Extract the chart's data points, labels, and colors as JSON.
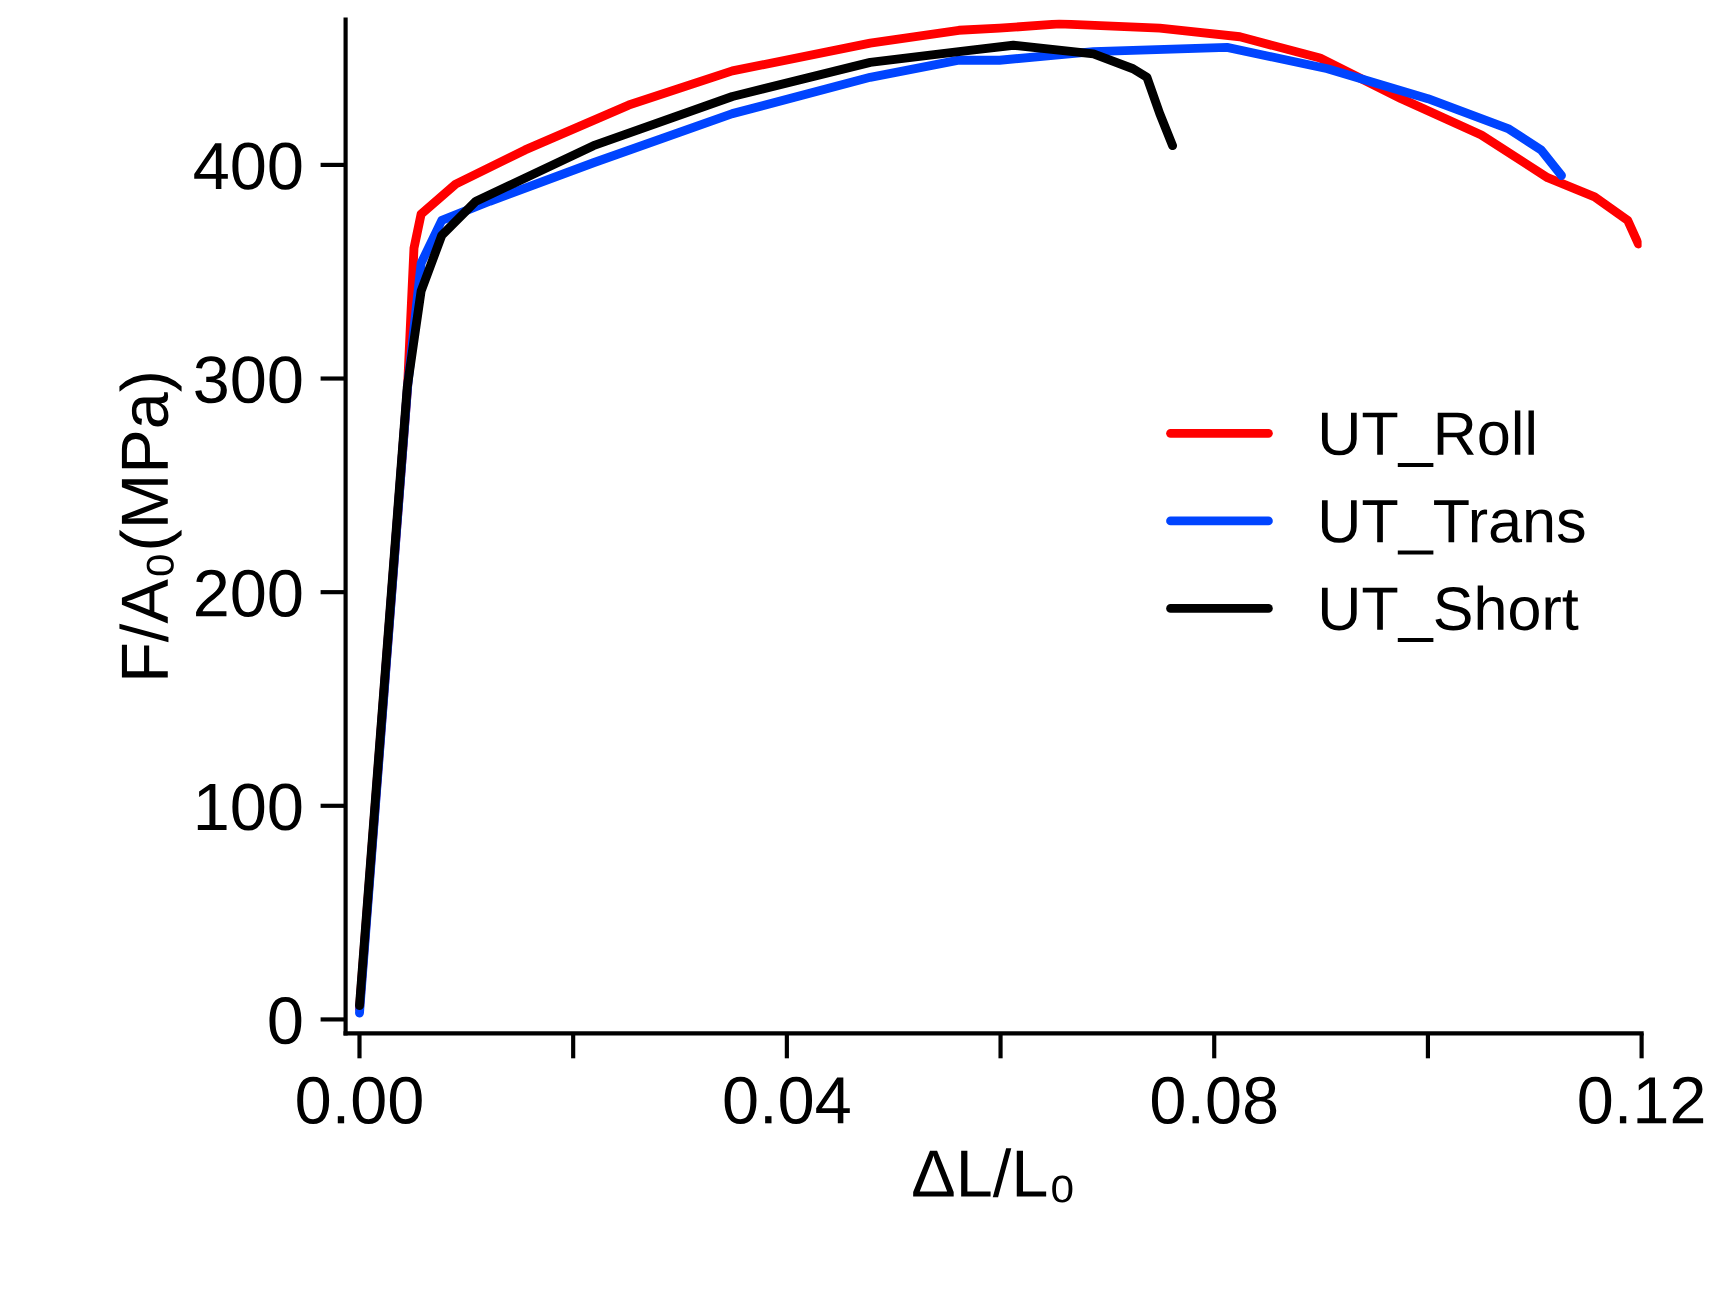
{
  "chart_data": {
    "type": "line",
    "xlabel": "ΔL/L₀",
    "ylabel": "F/A₀(MPa)",
    "xlim": [
      -0.0013,
      0.12
    ],
    "ylim": [
      -6.5,
      468
    ],
    "xticks": [
      {
        "value": 0,
        "label": "0.00"
      },
      {
        "value": 0.02,
        "label": null
      },
      {
        "value": 0.04,
        "label": "0.04"
      },
      {
        "value": 0.06,
        "label": null
      },
      {
        "value": 0.08,
        "label": "0.08"
      },
      {
        "value": 0.1,
        "label": null
      },
      {
        "value": 0.12,
        "label": "0.12"
      }
    ],
    "yticks": [
      0,
      100,
      200,
      300,
      400
    ],
    "grid": false,
    "legend": "right",
    "line_style": "solid",
    "marker": "none",
    "series": [
      {
        "name": "UT_Roll",
        "color": "#ff0000",
        "x": [
          0,
          0.0045,
          0.0051,
          0.00577,
          0.009,
          0.0155,
          0.0252,
          0.0349,
          0.0478,
          0.0561,
          0.0599,
          0.0655,
          0.0749,
          0.0824,
          0.0899,
          0.0975,
          0.105,
          0.1112,
          0.1156,
          0.1187,
          0.1197
        ],
        "values": [
          5,
          296,
          361,
          377,
          391,
          407,
          428,
          444,
          457,
          463,
          464,
          466,
          464,
          460,
          450,
          431,
          414,
          394,
          385,
          374,
          363
        ]
      },
      {
        "name": "UT_Trans",
        "color": "#0044ff",
        "x": [
          0,
          0.0045,
          0.00577,
          0.0077,
          0.0122,
          0.0219,
          0.0349,
          0.0478,
          0.0561,
          0.0599,
          0.0687,
          0.0812,
          0.0906,
          0.1,
          0.1075,
          0.1106,
          0.1125
        ],
        "values": [
          3,
          296,
          354,
          374,
          383,
          401,
          424,
          441,
          449,
          449,
          453,
          455,
          445,
          431,
          417,
          407,
          395
        ]
      },
      {
        "name": "UT_Short",
        "color": "#000000",
        "x": [
          0,
          0.00447,
          0.00577,
          0.0077,
          0.0109,
          0.0219,
          0.0349,
          0.0478,
          0.0561,
          0.0612,
          0.0687,
          0.0724,
          0.0737,
          0.0749,
          0.0761
        ],
        "values": [
          6.5,
          296,
          341,
          367,
          383,
          409,
          432,
          448,
          453,
          456,
          452,
          445,
          441,
          424,
          409
        ]
      }
    ]
  }
}
